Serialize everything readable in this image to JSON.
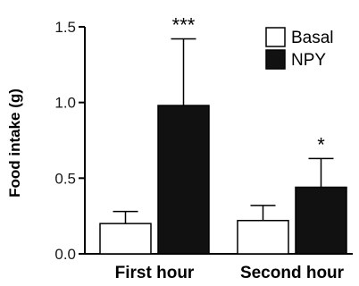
{
  "chart_data": {
    "type": "bar",
    "ylabel": "Food intake (g)",
    "ylim": [
      0,
      1.5
    ],
    "yticks": [
      "0.0",
      "0.5",
      "1.0",
      "1.5"
    ],
    "categories": [
      "First hour",
      "Second hour"
    ],
    "series": [
      {
        "name": "Basal",
        "values": [
          0.2,
          0.22
        ],
        "errors": [
          0.08,
          0.1
        ],
        "fill": "#ffffff"
      },
      {
        "name": "NPY",
        "values": [
          0.98,
          0.44
        ],
        "errors": [
          0.44,
          0.19
        ],
        "fill": "#111111"
      }
    ],
    "annotations": [
      {
        "category": 0,
        "series": 1,
        "text": "***"
      },
      {
        "category": 1,
        "series": 1,
        "text": "*"
      }
    ],
    "legend_position": "top-right",
    "grid": false
  }
}
